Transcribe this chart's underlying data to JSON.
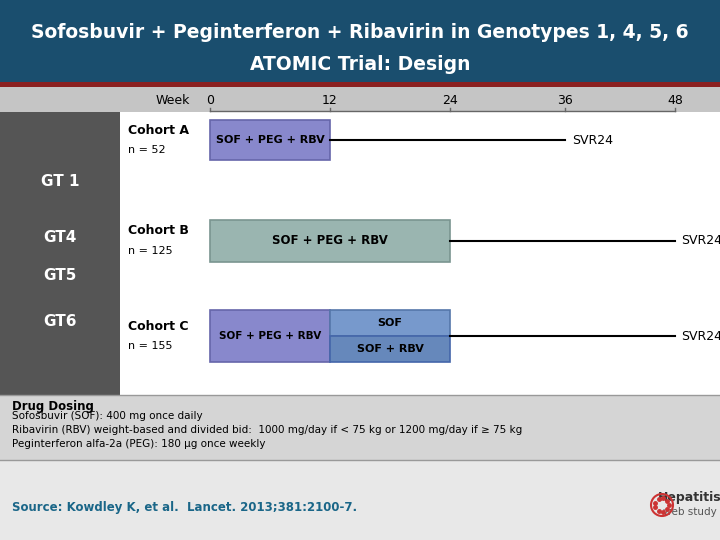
{
  "title_line1": "Sofosbuvir + Peginterferon + Ribavirin in Genotypes 1, 4, 5, 6",
  "title_line2": "ATOMIC Trial: Design",
  "title_bg": "#1a4e6e",
  "title_color": "#ffffff",
  "header_bg": "#c8c8c8",
  "sidebar_bg": "#555555",
  "main_bg": "#ffffff",
  "dosing_bg": "#d8d8d8",
  "bottom_bg": "#e8e8e8",
  "week_positions": [
    210,
    330,
    450,
    565,
    675
  ],
  "week_labels": [
    "0",
    "12",
    "24",
    "36",
    "48"
  ],
  "cohort_a_box_color": "#8888cc",
  "cohort_a_box_edge": "#6666aa",
  "cohort_b_box_color": "#9ab5b0",
  "cohort_b_box_edge": "#7a9590",
  "cohort_c1_box_color": "#8888cc",
  "cohort_c1_box_edge": "#6666aa",
  "cohort_c2_top_color": "#7799cc",
  "cohort_c2_top_edge": "#5577aa",
  "cohort_c2_bot_color": "#6688bb",
  "cohort_c2_bot_edge": "#4466aa",
  "drug_dosing_bold": "Drug Dosing",
  "drug_dosing_lines": [
    "Sofosbuvir (SOF): 400 mg once daily",
    "Ribavirin (RBV) weight-based and divided bid:  1000 mg/day if < 75 kg or 1200 mg/day if ≥ 75 kg",
    "Peginterferon alfa-2a (PEG): 180 μg once weekly"
  ],
  "source_text": "Source: Kowdley K, et al.  Lancet. 2013;381:2100-7.",
  "source_color": "#1a6688",
  "hepatitis_color": "#333333",
  "webstudy_color": "#555555",
  "logo_color": "#cc3333"
}
